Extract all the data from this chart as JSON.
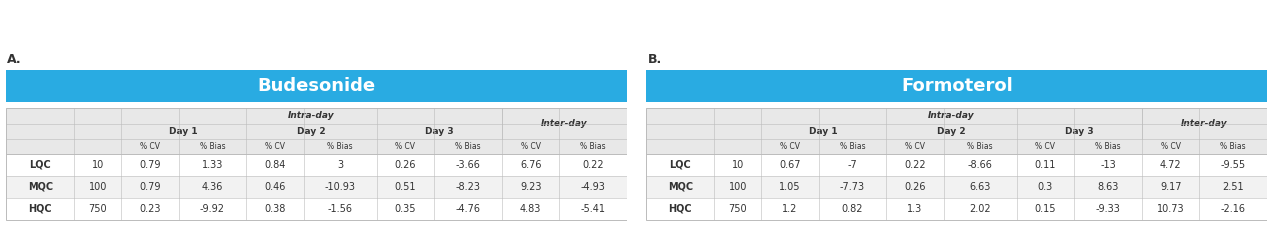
{
  "panel_A_title": "Budesonide",
  "panel_B_title": "Formoterol",
  "label_A": "A.",
  "label_B": "B.",
  "header_bg": "#29ABE2",
  "header_text_color": "#FFFFFF",
  "table_header_bg": "#E8E8E8",
  "row_bg_white": "#FFFFFF",
  "row_bg_gray": "#F2F2F2",
  "text_color": "#333333",
  "border_color": "#BBBBBB",
  "rows": [
    "LQC",
    "MQC",
    "HQC"
  ],
  "conc": [
    "10",
    "100",
    "750"
  ],
  "bud_data": [
    [
      "0.79",
      "1.33",
      "0.84",
      "3",
      "0.26",
      "-3.66",
      "6.76",
      "0.22"
    ],
    [
      "0.79",
      "4.36",
      "0.46",
      "-10.93",
      "0.51",
      "-8.23",
      "9.23",
      "-4.93"
    ],
    [
      "0.23",
      "-9.92",
      "0.38",
      "-1.56",
      "0.35",
      "-4.76",
      "4.83",
      "-5.41"
    ]
  ],
  "form_data": [
    [
      "0.67",
      "-7",
      "0.22",
      "-8.66",
      "0.11",
      "-13",
      "4.72",
      "-9.55"
    ],
    [
      "1.05",
      "-7.73",
      "0.26",
      "6.63",
      "0.3",
      "8.63",
      "9.17",
      "2.51"
    ],
    [
      "1.2",
      "0.82",
      "1.3",
      "2.02",
      "0.15",
      "-9.33",
      "10.73",
      "-2.16"
    ]
  ],
  "col_weights": [
    1.3,
    0.9,
    1.1,
    1.3,
    1.1,
    1.4,
    1.1,
    1.3,
    1.1,
    1.3
  ]
}
